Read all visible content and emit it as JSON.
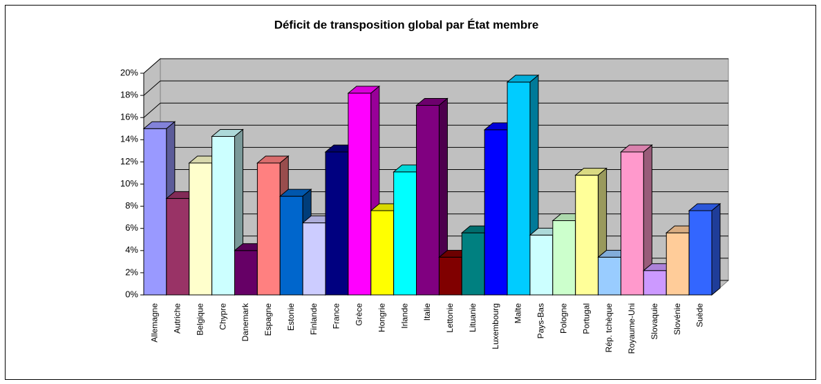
{
  "chart_data": {
    "type": "bar3d",
    "title": "Déficit de transposition global par État membre",
    "categories": [
      "Allemagne",
      "Autriche",
      "Belgique",
      "Chypre",
      "Danemark",
      "Espagne",
      "Estonie",
      "Finlande",
      "France",
      "Grèce",
      "Hongrie",
      "Irlande",
      "Italie",
      "Lettonie",
      "Lituanie",
      "Luxembourg",
      "Malte",
      "Pays-Bas",
      "Pologne",
      "Portugal",
      "Rép. tchèque",
      "Royaume-Uni",
      "Slovaquie",
      "Slovénie",
      "Suède"
    ],
    "values": [
      15.0,
      8.7,
      11.9,
      14.3,
      4.0,
      11.9,
      8.9,
      6.5,
      12.9,
      18.2,
      7.6,
      11.1,
      17.1,
      3.4,
      5.6,
      14.9,
      19.2,
      5.4,
      6.7,
      10.8,
      3.4,
      12.9,
      2.2,
      5.6,
      7.6
    ],
    "colors": [
      "#9999ff",
      "#993366",
      "#ffffcc",
      "#ccffff",
      "#660066",
      "#ff8080",
      "#0066cc",
      "#ccccff",
      "#000080",
      "#ff00ff",
      "#ffff00",
      "#00ffff",
      "#800080",
      "#800000",
      "#008080",
      "#0000ff",
      "#00ccff",
      "#ccffff",
      "#ccffcc",
      "#ffff99",
      "#99ccff",
      "#ff99cc",
      "#cc99ff",
      "#ffcc99",
      "#3366ff"
    ],
    "ylim": [
      0,
      20
    ],
    "yticks": [
      {
        "value": 0,
        "label": "0%"
      },
      {
        "value": 2,
        "label": "2%"
      },
      {
        "value": 4,
        "label": "4%"
      },
      {
        "value": 6,
        "label": "6%"
      },
      {
        "value": 8,
        "label": "8%"
      },
      {
        "value": 10,
        "label": "10%"
      },
      {
        "value": 12,
        "label": "12%"
      },
      {
        "value": 14,
        "label": "14%"
      },
      {
        "value": 16,
        "label": "16%"
      },
      {
        "value": 18,
        "label": "18%"
      },
      {
        "value": 20,
        "label": "20%"
      }
    ],
    "grid": true
  }
}
